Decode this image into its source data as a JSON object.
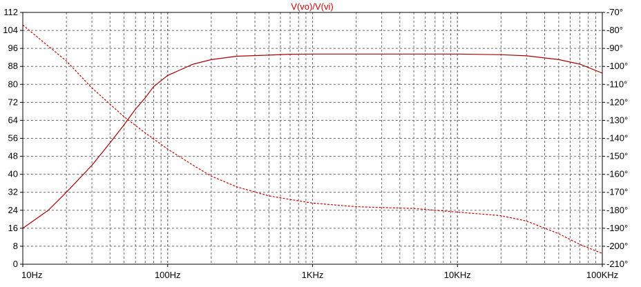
{
  "chart_data": {
    "type": "line",
    "title": "V(vo)/V(vi)",
    "x_scale": "log",
    "xlim": [
      10,
      100000
    ],
    "x_tick_values": [
      10,
      100,
      1000,
      10000,
      100000
    ],
    "x_tick_labels": [
      "10Hz",
      "100Hz",
      "1KHz",
      "10KHz",
      "100KHz"
    ],
    "left_axis": {
      "ylim": [
        0,
        112
      ],
      "tick_values": [
        0,
        8,
        16,
        24,
        32,
        40,
        48,
        56,
        64,
        72,
        80,
        88,
        96,
        104,
        112
      ],
      "tick_labels": [
        "0",
        "8",
        "16",
        "24",
        "32",
        "40",
        "48",
        "56",
        "64",
        "72",
        "80",
        "88",
        "96",
        "104",
        "112"
      ]
    },
    "right_axis": {
      "ylim": [
        -210,
        -70
      ],
      "tick_values": [
        -70,
        -80,
        -90,
        -100,
        -110,
        -120,
        -130,
        -140,
        -150,
        -160,
        -170,
        -180,
        -190,
        -200,
        -210
      ],
      "tick_labels": [
        "-70°",
        "-80°",
        "-90°",
        "-100°",
        "-110°",
        "-120°",
        "-130°",
        "-140°",
        "-150°",
        "-160°",
        "-170°",
        "-180°",
        "-190°",
        "-200°",
        "-210°"
      ]
    },
    "grid": true,
    "series": [
      {
        "axis": "left",
        "style": "solid",
        "color": "#aa0000",
        "x": [
          10,
          15,
          20,
          30,
          40,
          50,
          60,
          70,
          80,
          100,
          150,
          200,
          300,
          500,
          700,
          1000,
          2000,
          5000,
          10000,
          20000,
          30000,
          50000,
          70000,
          100000
        ],
        "y": [
          16,
          24,
          32,
          44,
          54,
          62,
          69,
          74,
          79,
          84,
          89,
          91,
          92.5,
          93,
          93.4,
          93.5,
          93.5,
          93.5,
          93.5,
          93.2,
          92.7,
          91,
          89,
          85
        ]
      },
      {
        "axis": "right",
        "style": "dashed",
        "color": "#cc0000",
        "x": [
          10,
          20,
          30,
          50,
          70,
          100,
          150,
          200,
          300,
          500,
          700,
          1000,
          2000,
          5000,
          10000,
          20000,
          30000,
          50000,
          70000,
          100000
        ],
        "y": [
          -77,
          -97,
          -112,
          -128,
          -137,
          -146,
          -155,
          -161,
          -167,
          -172,
          -174,
          -176,
          -178,
          -179,
          -181,
          -183,
          -186,
          -193,
          -199,
          -204
        ]
      }
    ]
  }
}
